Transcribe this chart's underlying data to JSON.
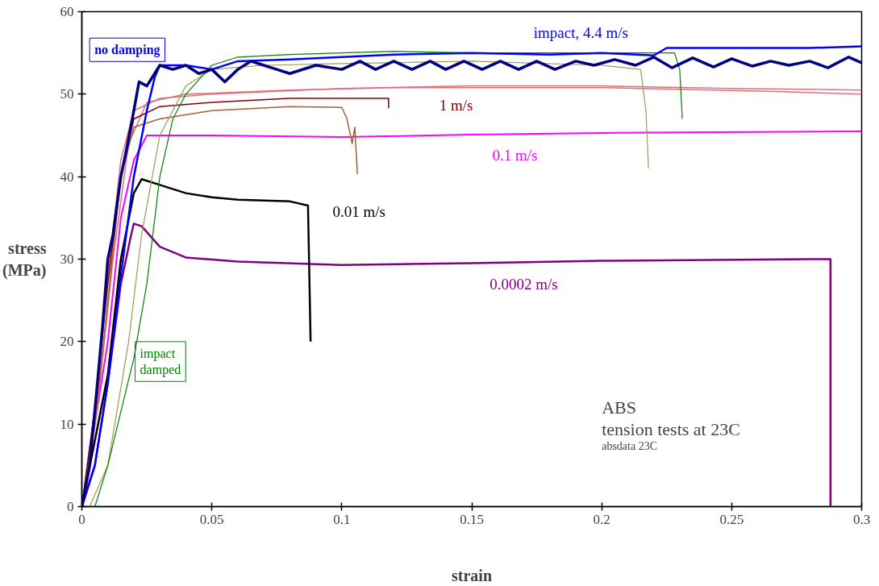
{
  "chart_data": {
    "type": "line",
    "xlabel": "strain",
    "ylabel": "stress\n(MPa)",
    "xlim": [
      0,
      0.3
    ],
    "ylim": [
      0,
      60
    ],
    "xticks": [
      0,
      0.05,
      0.1,
      0.15,
      0.2,
      0.25,
      0.3
    ],
    "yticks": [
      0,
      10,
      20,
      30,
      40,
      50,
      60
    ],
    "grid": false,
    "legend": false,
    "marker": "none",
    "line_style": "solid",
    "series": [
      {
        "name": "0.0002 m/s",
        "color": "#800080",
        "x": [
          0,
          0.005,
          0.01,
          0.015,
          0.019,
          0.02,
          0.023,
          0.03,
          0.04,
          0.06,
          0.1,
          0.15,
          0.2,
          0.28,
          0.288,
          0.288
        ],
        "values": [
          0,
          5,
          15,
          27,
          33,
          34.3,
          34,
          31.5,
          30.2,
          29.7,
          29.3,
          29.5,
          29.8,
          30,
          30,
          0
        ]
      },
      {
        "name": "0.01 m/s",
        "color": "#000000",
        "x": [
          0,
          0.01,
          0.015,
          0.02,
          0.023,
          0.03,
          0.04,
          0.05,
          0.06,
          0.08,
          0.087,
          0.088
        ],
        "values": [
          0,
          16,
          30,
          38,
          39.7,
          39,
          38,
          37.5,
          37.2,
          37,
          36.5,
          20
        ]
      },
      {
        "name": "0.1 m/s",
        "color": "#ff00ff",
        "x": [
          0,
          0.01,
          0.015,
          0.02,
          0.025,
          0.05,
          0.1,
          0.15,
          0.2,
          0.3
        ],
        "values": [
          0,
          20,
          35,
          42,
          45,
          45,
          44.8,
          45.1,
          45.3,
          45.5
        ]
      },
      {
        "color": "#e07078",
        "x": [
          0,
          0.005,
          0.01,
          0.015,
          0.02,
          0.03,
          0.05,
          0.1,
          0.15,
          0.2,
          0.25,
          0.3
        ],
        "values": [
          0,
          12,
          28,
          42,
          48,
          49.5,
          50,
          50.7,
          51,
          51,
          50.7,
          50.5
        ]
      },
      {
        "color": "#e07078",
        "x": [
          0,
          0.006,
          0.012,
          0.018,
          0.025,
          0.04,
          0.08,
          0.12,
          0.2,
          0.27,
          0.3
        ],
        "values": [
          0,
          12,
          30,
          44,
          49,
          50,
          50.5,
          50.8,
          50.8,
          50.3,
          50
        ]
      },
      {
        "color": "#a0603c",
        "x": [
          0,
          0.005,
          0.01,
          0.015,
          0.02,
          0.03,
          0.05,
          0.08,
          0.1,
          0.102,
          0.104,
          0.105,
          0.106
        ],
        "values": [
          0,
          10,
          25,
          40,
          46,
          47,
          48,
          48.5,
          48.4,
          47,
          44,
          46,
          40.3
        ]
      },
      {
        "name": "1 m/s",
        "color": "#800000",
        "x": [
          0,
          0.005,
          0.01,
          0.015,
          0.02,
          0.03,
          0.05,
          0.08,
          0.1,
          0.118,
          0.118
        ],
        "values": [
          0,
          12,
          27,
          40,
          47,
          48.5,
          49,
          49.5,
          49.5,
          49.5,
          48.3
        ]
      },
      {
        "color": "#a09850",
        "x": [
          0.003,
          0.01,
          0.018,
          0.023,
          0.03,
          0.04,
          0.05,
          0.07,
          0.1,
          0.15,
          0.2,
          0.215,
          0.217,
          0.218
        ],
        "values": [
          0,
          5,
          20,
          33,
          45,
          51,
          53,
          53.5,
          53.7,
          54,
          53.5,
          53,
          48,
          41
        ]
      },
      {
        "name": "impact\ndamped",
        "color": "#008000",
        "x": [
          0.005,
          0.01,
          0.02,
          0.025,
          0.03,
          0.035,
          0.04,
          0.05,
          0.06,
          0.08,
          0.1,
          0.12,
          0.15,
          0.2,
          0.228,
          0.23,
          0.231
        ],
        "values": [
          0,
          5,
          18,
          27,
          40,
          47,
          50,
          53.5,
          54.5,
          54.8,
          55,
          55.2,
          55,
          55,
          55,
          53,
          47
        ]
      },
      {
        "name": "impact, 4.4 m/s",
        "color": "#0000ff",
        "x": [
          0,
          0.005,
          0.01,
          0.015,
          0.02,
          0.025,
          0.028,
          0.03,
          0.04,
          0.05,
          0.06,
          0.08,
          0.1,
          0.12,
          0.15,
          0.18,
          0.2,
          0.22,
          0.225,
          0.25,
          0.28,
          0.3
        ],
        "values": [
          0,
          5,
          15,
          28,
          40,
          48,
          52,
          53.5,
          53.5,
          53,
          54,
          54.2,
          54.5,
          54.8,
          55,
          54.8,
          55,
          54.7,
          55.6,
          55.6,
          55.6,
          55.8
        ]
      },
      {
        "color": "#000080",
        "x": [
          0,
          0.003,
          0.006,
          0.008,
          0.01,
          0.012,
          0.015,
          0.017,
          0.02,
          0.022,
          0.025,
          0.03,
          0.035,
          0.04,
          0.045,
          0.05,
          0.055,
          0.06,
          0.065,
          0.07,
          0.075,
          0.08,
          0.09,
          0.1,
          0.107,
          0.113,
          0.12,
          0.127,
          0.134,
          0.14,
          0.147,
          0.154,
          0.161,
          0.168,
          0.175,
          0.182,
          0.19,
          0.197,
          0.205,
          0.213,
          0.22,
          0.227,
          0.235,
          0.243,
          0.25,
          0.258,
          0.265,
          0.272,
          0.28,
          0.287,
          0.295,
          0.3
        ],
        "values": [
          0,
          5,
          15,
          22,
          30,
          33,
          40,
          43,
          48,
          51.5,
          51,
          53.5,
          53,
          53.5,
          52.5,
          53,
          51.5,
          53,
          54,
          53.5,
          53,
          52.5,
          53.5,
          53,
          54,
          53,
          54,
          53,
          54,
          53,
          54,
          53,
          54,
          53,
          54,
          53,
          54,
          53.5,
          54.2,
          53.5,
          54.5,
          53.2,
          54.4,
          53.3,
          54.3,
          53.4,
          54,
          53.5,
          54,
          53.2,
          54.5,
          53.8
        ]
      }
    ],
    "annotations": [
      "no damping",
      "ABS",
      "tension tests at 23C",
      "absdata 23C"
    ]
  }
}
